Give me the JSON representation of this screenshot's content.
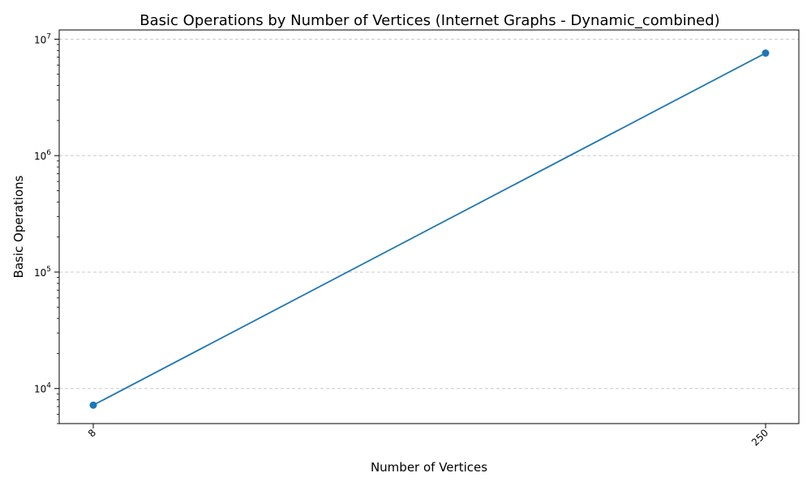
{
  "chart_data": {
    "type": "line",
    "title": "Basic Operations by Number of Vertices (Internet Graphs - Dynamic_combined)",
    "xlabel": "Number of Vertices",
    "ylabel": "Basic Operations",
    "x_scale": "categorical",
    "y_scale": "log",
    "categories": [
      "8",
      "250"
    ],
    "series": [
      {
        "values": [
          7200,
          7600000
        ],
        "color": "#1f77b4",
        "marker": "circle"
      }
    ],
    "ylim": [
      5000,
      12000000
    ],
    "y_major_ticks": [
      {
        "value": 10000,
        "base": "10",
        "exp": "4"
      },
      {
        "value": 100000,
        "base": "10",
        "exp": "5"
      },
      {
        "value": 1000000,
        "base": "10",
        "exp": "6"
      },
      {
        "value": 10000000,
        "base": "10",
        "exp": "7"
      }
    ],
    "x_tick_rotation_deg": 45,
    "grid": {
      "y": true,
      "x": false,
      "style": "dashed",
      "color": "#c8c8c8"
    }
  }
}
